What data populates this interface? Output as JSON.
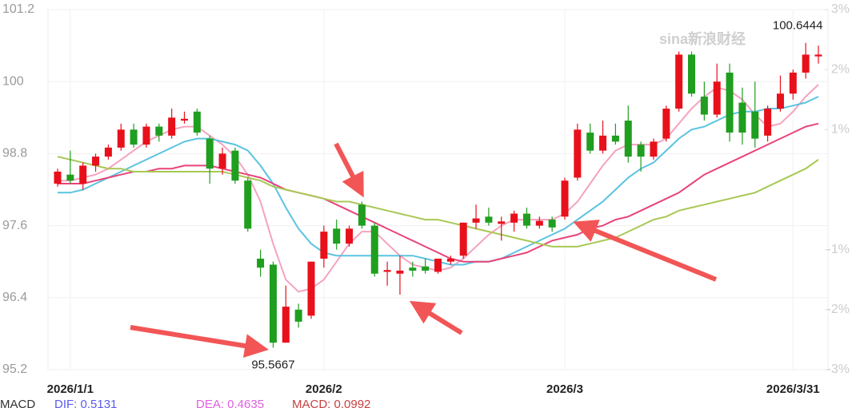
{
  "chart_data": {
    "type": "candlestick",
    "watermark": "sina新浪财经",
    "categories": [
      null,
      "2026/1/1",
      null,
      null,
      null,
      null,
      null,
      null,
      null,
      null,
      null,
      null,
      null,
      null,
      null,
      null,
      null,
      null,
      null,
      null,
      null,
      "2026/2",
      null,
      null,
      null,
      null,
      null,
      null,
      null,
      null,
      null,
      null,
      null,
      null,
      null,
      null,
      null,
      null,
      null,
      null,
      "2026/3",
      null,
      null,
      null,
      null,
      null,
      null,
      null,
      null,
      null,
      null,
      null,
      null,
      null,
      null,
      null,
      null,
      null,
      "2026/3/31",
      null,
      null
    ],
    "open": [
      98.3,
      98.45,
      98.3,
      98.6,
      98.75,
      98.9,
      99.2,
      98.95,
      99.25,
      99.1,
      99.35,
      99.5,
      99.05,
      98.55,
      98.85,
      98.35,
      97.05,
      96.95,
      95.65,
      96.2,
      96.1,
      97.05,
      97.55,
      97.3,
      97.95,
      97.6,
      96.83,
      96.8,
      96.9,
      96.92,
      96.83,
      97.0,
      97.1,
      97.65,
      97.75,
      97.63,
      97.65,
      97.8,
      97.6,
      97.7,
      97.75,
      98.4,
      99.15,
      98.85,
      99.1,
      99.35,
      98.95,
      98.75,
      99.05,
      99.55,
      100.45,
      99.75,
      99.45,
      100.15,
      99.65,
      99.5,
      99.1,
      99.55,
      99.8,
      100.15,
      100.42
    ],
    "high": [
      98.55,
      98.85,
      98.65,
      98.8,
      98.95,
      99.3,
      99.3,
      99.3,
      99.3,
      99.55,
      99.5,
      99.55,
      99.1,
      98.9,
      98.9,
      98.4,
      97.2,
      97.0,
      96.6,
      96.3,
      97.0,
      97.6,
      97.7,
      97.6,
      98.0,
      97.65,
      97.0,
      97.1,
      97.0,
      97.05,
      97.05,
      97.1,
      97.65,
      97.95,
      97.9,
      97.75,
      97.85,
      97.9,
      97.75,
      97.75,
      98.4,
      99.3,
      99.3,
      99.35,
      99.3,
      99.6,
      99.0,
      99.05,
      99.6,
      100.5,
      100.5,
      100.0,
      100.3,
      100.3,
      99.9,
      100.0,
      99.6,
      100.1,
      100.2,
      100.6444,
      100.6
    ],
    "low": [
      98.25,
      98.3,
      98.2,
      98.5,
      98.7,
      98.85,
      98.9,
      98.9,
      99.0,
      99.05,
      99.3,
      99.1,
      98.3,
      98.45,
      98.3,
      97.5,
      96.75,
      95.5667,
      95.65,
      95.9,
      96.05,
      96.9,
      97.2,
      97.25,
      97.55,
      96.75,
      96.6,
      96.45,
      96.75,
      96.8,
      96.8,
      96.95,
      97.05,
      97.55,
      97.6,
      97.35,
      97.5,
      97.55,
      97.55,
      97.5,
      97.7,
      98.35,
      98.8,
      98.8,
      98.95,
      98.65,
      98.5,
      98.7,
      99.0,
      99.5,
      99.75,
      99.35,
      99.4,
      99.0,
      98.95,
      98.9,
      99.0,
      99.5,
      99.7,
      100.05,
      100.3
    ],
    "close": [
      98.5,
      98.35,
      98.6,
      98.75,
      98.9,
      99.2,
      98.95,
      99.25,
      99.1,
      99.4,
      99.38,
      99.15,
      98.55,
      98.8,
      98.35,
      97.55,
      96.9,
      95.65,
      96.25,
      96.0,
      97.0,
      97.5,
      97.3,
      97.55,
      97.6,
      96.8,
      96.86,
      96.85,
      96.85,
      96.85,
      97.05,
      97.05,
      97.65,
      97.72,
      97.65,
      97.67,
      97.8,
      97.6,
      97.68,
      97.57,
      98.35,
      99.2,
      98.85,
      99.1,
      99.0,
      98.75,
      98.75,
      99.0,
      99.55,
      100.45,
      99.8,
      99.45,
      100.0,
      99.15,
      99.15,
      99.05,
      99.55,
      99.8,
      100.15,
      100.45,
      100.45
    ],
    "up_color": "#e8101b",
    "down_color": "#1f9e1f",
    "lines": [
      {
        "color": "#f4a3c0",
        "values": [
          98.35,
          98.35,
          98.4,
          98.45,
          98.55,
          98.7,
          98.85,
          99.0,
          99.1,
          99.2,
          99.25,
          99.25,
          99.1,
          98.95,
          98.75,
          98.45,
          98.0,
          97.3,
          96.7,
          96.5,
          96.55,
          96.7,
          97.0,
          97.3,
          97.5,
          97.5,
          97.3,
          97.1,
          96.95,
          96.9,
          96.85,
          96.9,
          97.05,
          97.25,
          97.45,
          97.6,
          97.7,
          97.7,
          97.7,
          97.7,
          97.8,
          98.0,
          98.3,
          98.6,
          98.85,
          98.95,
          98.95,
          98.95,
          99.05,
          99.3,
          99.55,
          99.75,
          99.9,
          99.85,
          99.7,
          99.45,
          99.25,
          99.3,
          99.5,
          99.75,
          99.95
        ]
      },
      {
        "color": "#5bc3e0",
        "values": [
          98.15,
          98.15,
          98.2,
          98.3,
          98.4,
          98.5,
          98.6,
          98.7,
          98.8,
          98.9,
          99.0,
          99.05,
          99.05,
          99.0,
          98.95,
          98.85,
          98.6,
          98.3,
          97.9,
          97.55,
          97.3,
          97.15,
          97.1,
          97.1,
          97.1,
          97.1,
          97.1,
          97.1,
          97.1,
          97.05,
          97.0,
          96.95,
          96.95,
          97.0,
          97.0,
          97.05,
          97.15,
          97.25,
          97.35,
          97.45,
          97.55,
          97.7,
          97.85,
          98.0,
          98.2,
          98.4,
          98.55,
          98.65,
          98.85,
          99.05,
          99.2,
          99.25,
          99.35,
          99.45,
          99.5,
          99.5,
          99.55,
          99.55,
          99.6,
          99.65,
          99.75
        ]
      },
      {
        "color": "#e8437a",
        "values": [
          98.3,
          98.3,
          98.3,
          98.35,
          98.4,
          98.45,
          98.5,
          98.5,
          98.55,
          98.55,
          98.6,
          98.6,
          98.6,
          98.55,
          98.5,
          98.45,
          98.4,
          98.3,
          98.2,
          98.15,
          98.1,
          98.05,
          97.95,
          97.85,
          97.75,
          97.65,
          97.55,
          97.45,
          97.35,
          97.25,
          97.15,
          97.05,
          97.0,
          97.0,
          97.0,
          97.05,
          97.1,
          97.15,
          97.25,
          97.35,
          97.4,
          97.45,
          97.55,
          97.6,
          97.7,
          97.75,
          97.85,
          97.95,
          98.05,
          98.15,
          98.3,
          98.45,
          98.55,
          98.65,
          98.75,
          98.85,
          98.95,
          99.05,
          99.15,
          99.25,
          99.3
        ]
      },
      {
        "color": "#a8c855",
        "values": [
          98.75,
          98.7,
          98.65,
          98.6,
          98.55,
          98.55,
          98.5,
          98.5,
          98.5,
          98.5,
          98.5,
          98.5,
          98.5,
          98.5,
          98.45,
          98.4,
          98.35,
          98.25,
          98.2,
          98.15,
          98.1,
          98.05,
          98.0,
          98.0,
          97.95,
          97.9,
          97.85,
          97.8,
          97.75,
          97.7,
          97.7,
          97.65,
          97.6,
          97.55,
          97.5,
          97.45,
          97.4,
          97.35,
          97.3,
          97.25,
          97.25,
          97.25,
          97.3,
          97.35,
          97.4,
          97.5,
          97.6,
          97.7,
          97.75,
          97.85,
          97.9,
          97.95,
          98.0,
          98.05,
          98.1,
          98.15,
          98.25,
          98.35,
          98.45,
          98.55,
          98.7
        ]
      }
    ],
    "ylim": [
      95.2,
      101.2
    ],
    "yticks": [
      95.2,
      96.4,
      97.6,
      98.8,
      100,
      101.2
    ],
    "y2lim": [
      -3,
      3
    ],
    "y2ticks": [
      {
        "value": -3,
        "label": "-3%"
      },
      {
        "value": -2,
        "label": "-2%"
      },
      {
        "value": -1,
        "label": "-1%"
      },
      {
        "value": 1,
        "label": "1%"
      },
      {
        "value": 2,
        "label": "2%"
      },
      {
        "value": 3,
        "label": "3%"
      }
    ],
    "annotations": [
      {
        "text": "100.6444",
        "value": 100.6444,
        "index": 59
      },
      {
        "text": "95.5667",
        "value": 95.5667,
        "index": 17
      }
    ],
    "macd_legend": [
      {
        "text": "MACD",
        "color": "#333333"
      },
      {
        "text": "DIF: 0.5131",
        "color": "#5b5bf0"
      },
      {
        "text": "DEA: 0.4635",
        "color": "#e060e0"
      },
      {
        "text": "MACD: 0.0992",
        "color": "#c84040"
      }
    ]
  }
}
